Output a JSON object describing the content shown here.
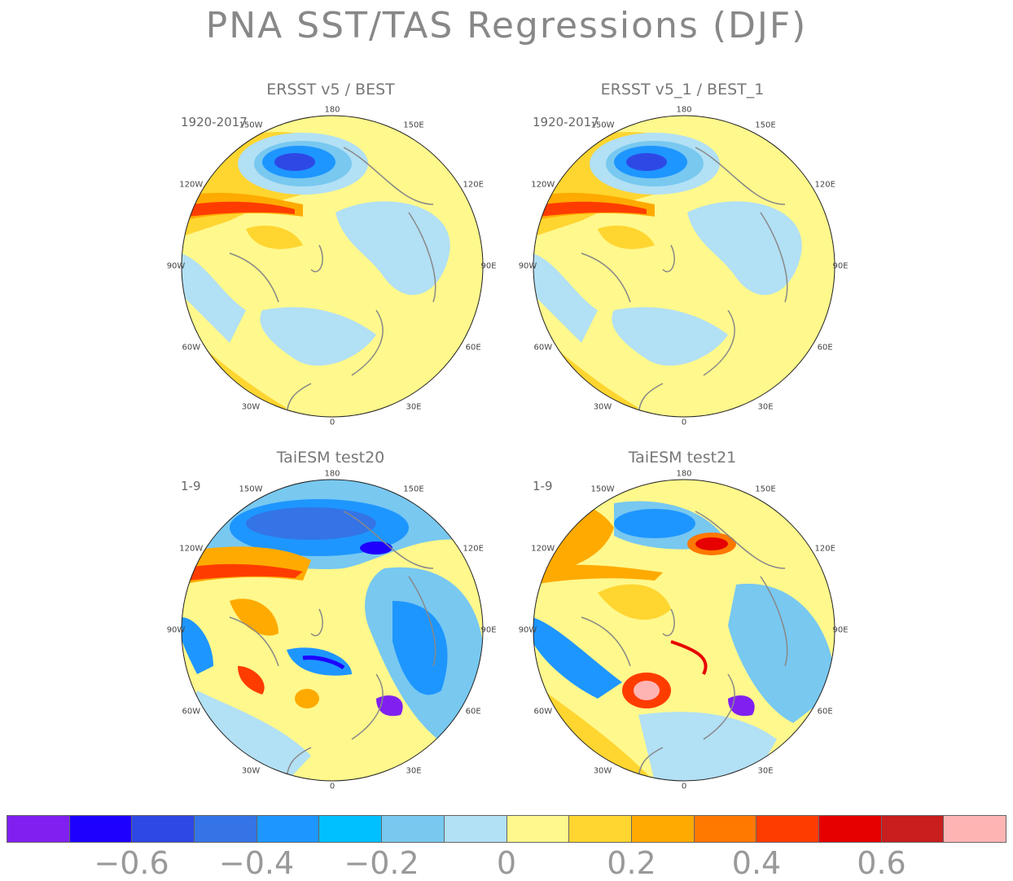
{
  "title": "PNA SST/TAS Regressions (DJF)",
  "panels": [
    {
      "title": "ERSST v5 / BEST",
      "period": "1920-2017"
    },
    {
      "title": "ERSST v5_1 / BEST_1",
      "period": "1920-2017"
    },
    {
      "title": "TaiESM test20",
      "period": "1-9"
    },
    {
      "title": "TaiESM test21",
      "period": "1-9"
    }
  ],
  "longitude_labels": [
    "180",
    "150E",
    "120E",
    "90E",
    "60E",
    "30E",
    "0",
    "30W",
    "60W",
    "90W",
    "120W",
    "150W"
  ],
  "colorbar": {
    "colors": [
      "#8020f0",
      "#1e00ff",
      "#2e48e6",
      "#3474e6",
      "#1e96ff",
      "#00c0ff",
      "#78c8f0",
      "#b2e0f4",
      "#fff88c",
      "#ffd530",
      "#ffaa00",
      "#ff7800",
      "#ff3c00",
      "#e60000",
      "#c81e1e",
      "#ffb4b4"
    ],
    "labels": [
      "−0.6",
      "−0.4",
      "−0.2",
      "0",
      "0.2",
      "0.4",
      "0.6"
    ]
  }
}
